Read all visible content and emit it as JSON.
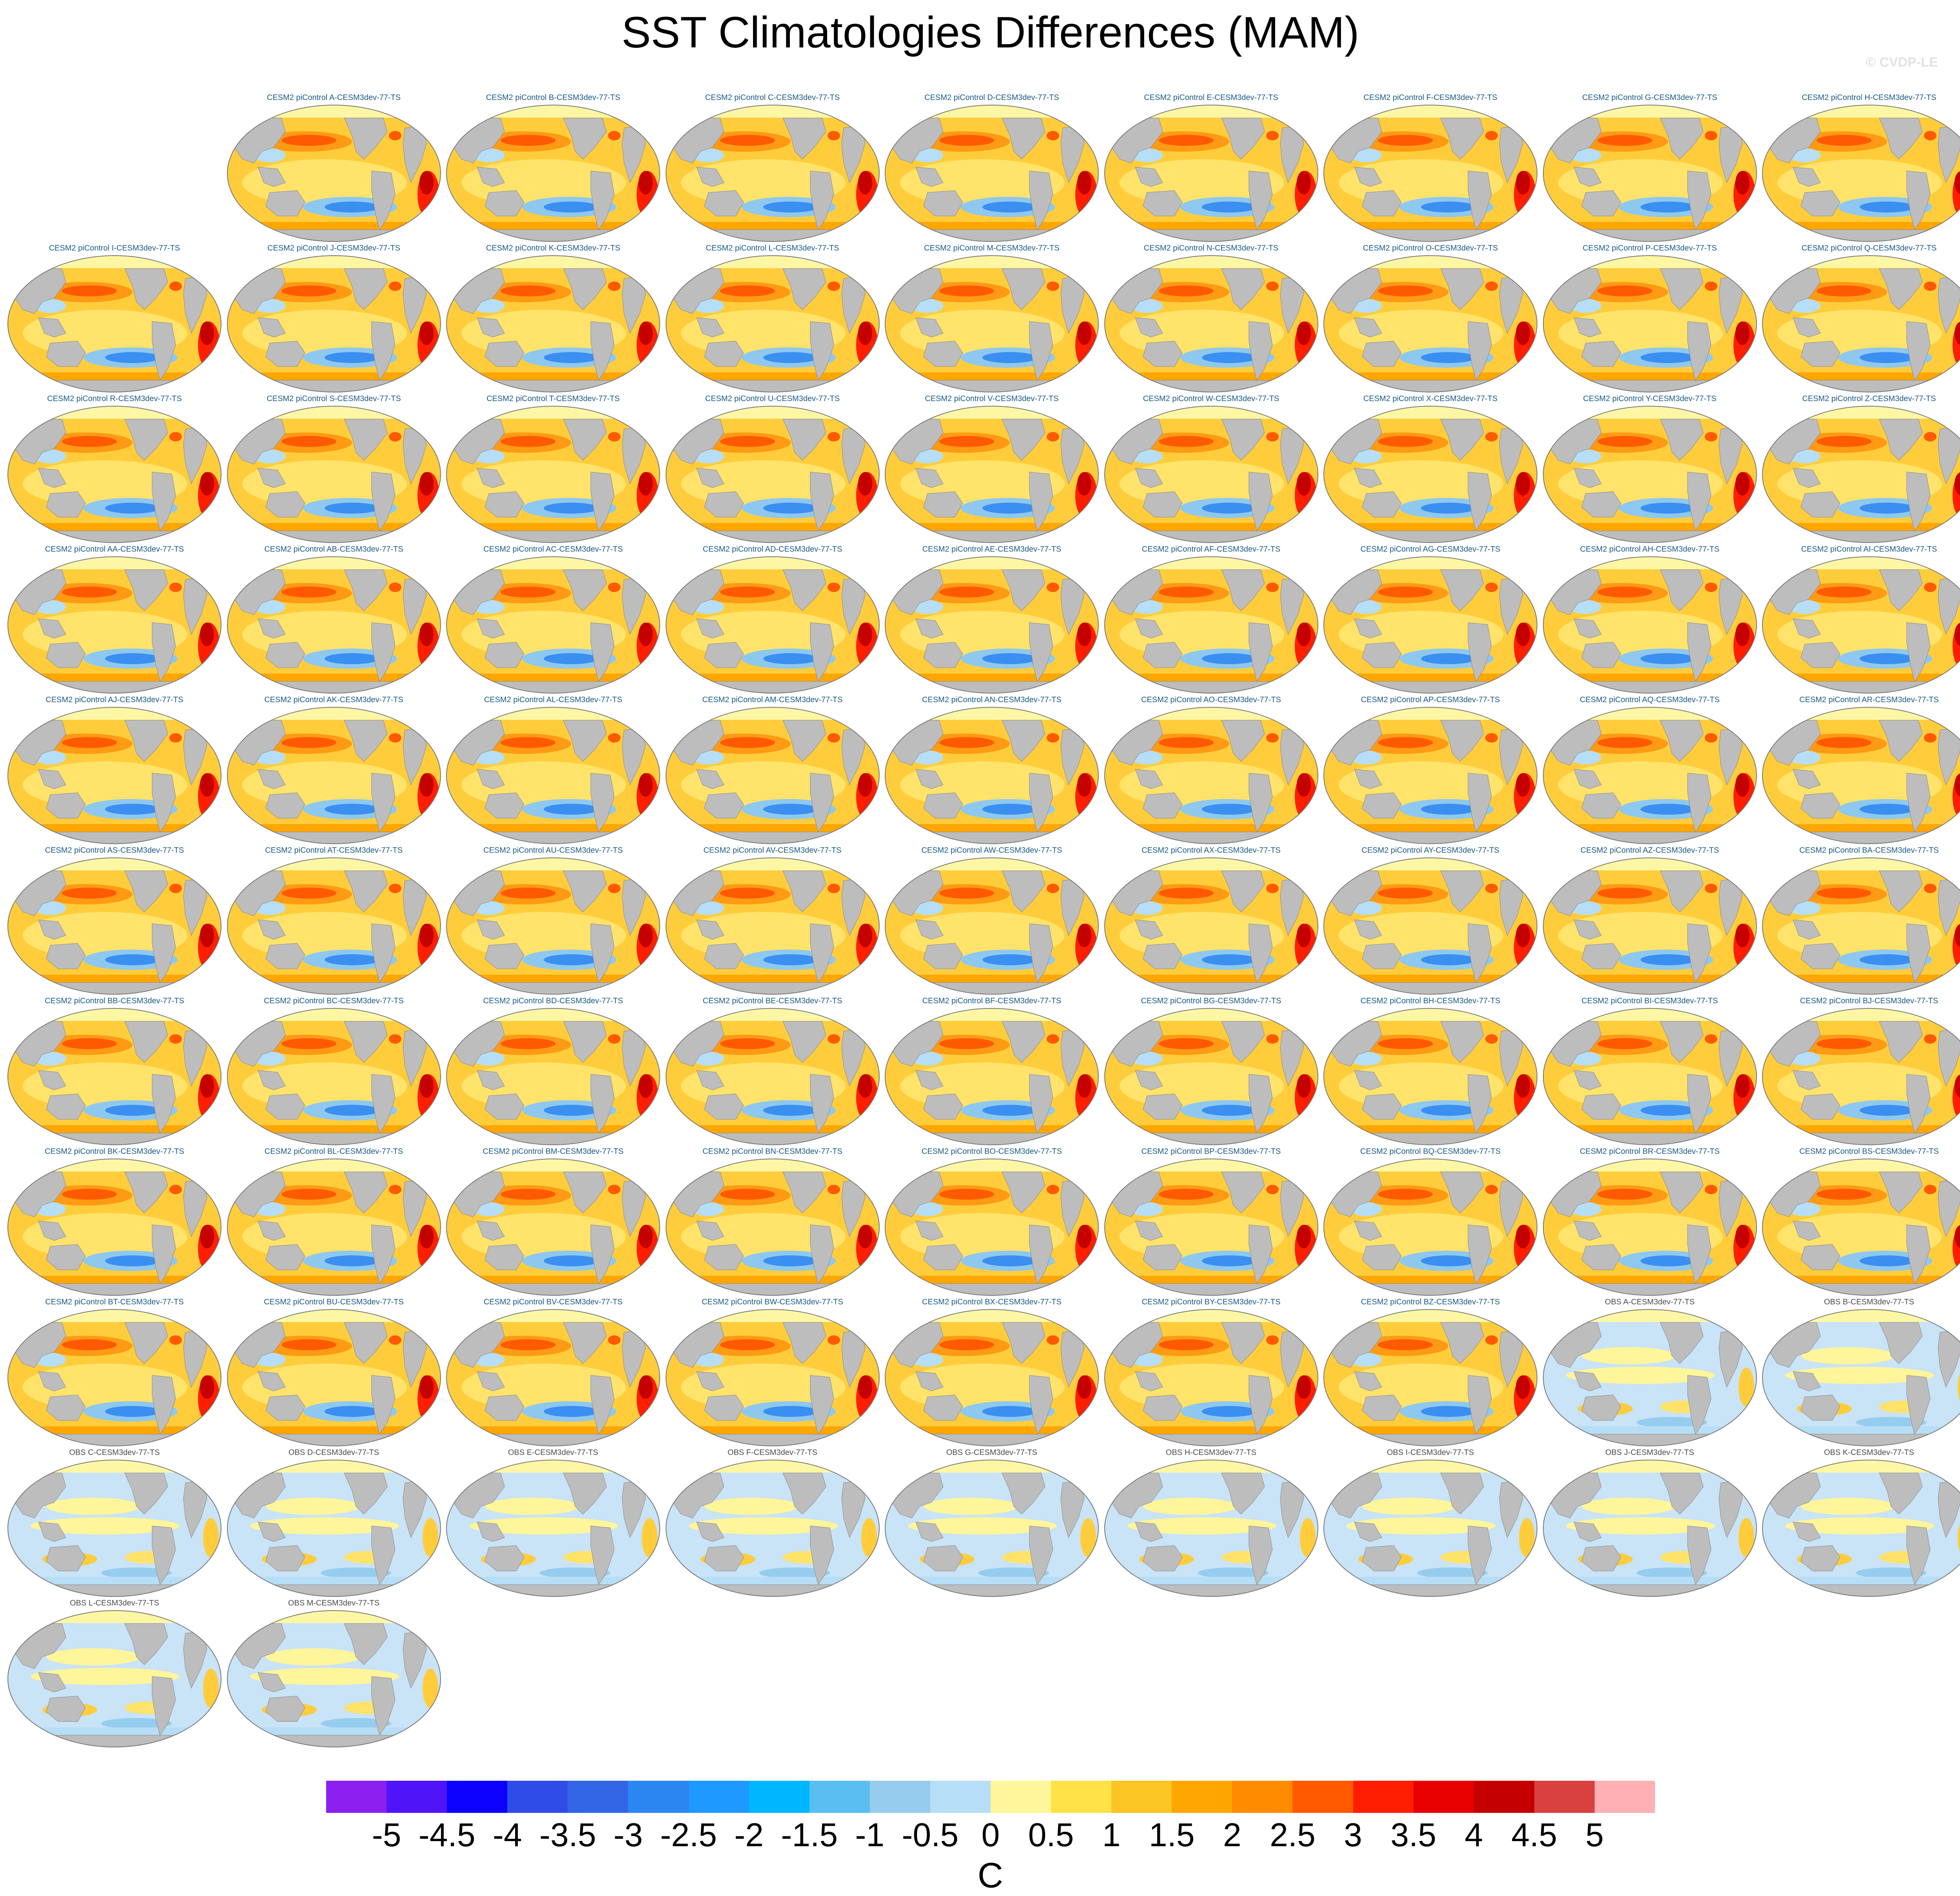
{
  "page": {
    "title": "SST Climatologies Differences (MAM)",
    "credit": "© CVDP-LE"
  },
  "chart_data": {
    "type": "heatmap",
    "title": "SST Climatologies Differences (MAM)",
    "projection": "global ocean maps (elliptical, Pacific-centered)",
    "land_color": "#bdbdbd",
    "sea_ice_color": "#fdf7a5",
    "panels": [
      {
        "label": "CESM2 piControl A-CESM3dev-77-TS",
        "kind": "model"
      },
      {
        "label": "CESM2 piControl B-CESM3dev-77-TS",
        "kind": "model"
      },
      {
        "label": "CESM2 piControl C-CESM3dev-77-TS",
        "kind": "model"
      },
      {
        "label": "CESM2 piControl D-CESM3dev-77-TS",
        "kind": "model"
      },
      {
        "label": "CESM2 piControl E-CESM3dev-77-TS",
        "kind": "model"
      },
      {
        "label": "CESM2 piControl F-CESM3dev-77-TS",
        "kind": "model"
      },
      {
        "label": "CESM2 piControl G-CESM3dev-77-TS",
        "kind": "model"
      },
      {
        "label": "CESM2 piControl H-CESM3dev-77-TS",
        "kind": "model"
      },
      {
        "label": "CESM2 piControl I-CESM3dev-77-TS",
        "kind": "model"
      },
      {
        "label": "CESM2 piControl J-CESM3dev-77-TS",
        "kind": "model"
      },
      {
        "label": "CESM2 piControl K-CESM3dev-77-TS",
        "kind": "model"
      },
      {
        "label": "CESM2 piControl L-CESM3dev-77-TS",
        "kind": "model"
      },
      {
        "label": "CESM2 piControl M-CESM3dev-77-TS",
        "kind": "model"
      },
      {
        "label": "CESM2 piControl N-CESM3dev-77-TS",
        "kind": "model"
      },
      {
        "label": "CESM2 piControl O-CESM3dev-77-TS",
        "kind": "model"
      },
      {
        "label": "CESM2 piControl P-CESM3dev-77-TS",
        "kind": "model"
      },
      {
        "label": "CESM2 piControl Q-CESM3dev-77-TS",
        "kind": "model"
      },
      {
        "label": "CESM2 piControl R-CESM3dev-77-TS",
        "kind": "model"
      },
      {
        "label": "CESM2 piControl S-CESM3dev-77-TS",
        "kind": "model"
      },
      {
        "label": "CESM2 piControl T-CESM3dev-77-TS",
        "kind": "model"
      },
      {
        "label": "CESM2 piControl U-CESM3dev-77-TS",
        "kind": "model"
      },
      {
        "label": "CESM2 piControl V-CESM3dev-77-TS",
        "kind": "model"
      },
      {
        "label": "CESM2 piControl W-CESM3dev-77-TS",
        "kind": "model"
      },
      {
        "label": "CESM2 piControl X-CESM3dev-77-TS",
        "kind": "model"
      },
      {
        "label": "CESM2 piControl Y-CESM3dev-77-TS",
        "kind": "model"
      },
      {
        "label": "CESM2 piControl Z-CESM3dev-77-TS",
        "kind": "model"
      },
      {
        "label": "CESM2 piControl AA-CESM3dev-77-TS",
        "kind": "model"
      },
      {
        "label": "CESM2 piControl AB-CESM3dev-77-TS",
        "kind": "model"
      },
      {
        "label": "CESM2 piControl AC-CESM3dev-77-TS",
        "kind": "model"
      },
      {
        "label": "CESM2 piControl AD-CESM3dev-77-TS",
        "kind": "model"
      },
      {
        "label": "CESM2 piControl AE-CESM3dev-77-TS",
        "kind": "model"
      },
      {
        "label": "CESM2 piControl AF-CESM3dev-77-TS",
        "kind": "model"
      },
      {
        "label": "CESM2 piControl AG-CESM3dev-77-TS",
        "kind": "model"
      },
      {
        "label": "CESM2 piControl AH-CESM3dev-77-TS",
        "kind": "model"
      },
      {
        "label": "CESM2 piControl AI-CESM3dev-77-TS",
        "kind": "model"
      },
      {
        "label": "CESM2 piControl AJ-CESM3dev-77-TS",
        "kind": "model"
      },
      {
        "label": "CESM2 piControl AK-CESM3dev-77-TS",
        "kind": "model"
      },
      {
        "label": "CESM2 piControl AL-CESM3dev-77-TS",
        "kind": "model"
      },
      {
        "label": "CESM2 piControl AM-CESM3dev-77-TS",
        "kind": "model"
      },
      {
        "label": "CESM2 piControl AN-CESM3dev-77-TS",
        "kind": "model"
      },
      {
        "label": "CESM2 piControl AO-CESM3dev-77-TS",
        "kind": "model"
      },
      {
        "label": "CESM2 piControl AP-CESM3dev-77-TS",
        "kind": "model"
      },
      {
        "label": "CESM2 piControl AQ-CESM3dev-77-TS",
        "kind": "model"
      },
      {
        "label": "CESM2 piControl AR-CESM3dev-77-TS",
        "kind": "model"
      },
      {
        "label": "CESM2 piControl AS-CESM3dev-77-TS",
        "kind": "model"
      },
      {
        "label": "CESM2 piControl AT-CESM3dev-77-TS",
        "kind": "model"
      },
      {
        "label": "CESM2 piControl AU-CESM3dev-77-TS",
        "kind": "model"
      },
      {
        "label": "CESM2 piControl AV-CESM3dev-77-TS",
        "kind": "model"
      },
      {
        "label": "CESM2 piControl AW-CESM3dev-77-TS",
        "kind": "model"
      },
      {
        "label": "CESM2 piControl AX-CESM3dev-77-TS",
        "kind": "model"
      },
      {
        "label": "CESM2 piControl AY-CESM3dev-77-TS",
        "kind": "model"
      },
      {
        "label": "CESM2 piControl AZ-CESM3dev-77-TS",
        "kind": "model"
      },
      {
        "label": "CESM2 piControl BA-CESM3dev-77-TS",
        "kind": "model"
      },
      {
        "label": "CESM2 piControl BB-CESM3dev-77-TS",
        "kind": "model"
      },
      {
        "label": "CESM2 piControl BC-CESM3dev-77-TS",
        "kind": "model"
      },
      {
        "label": "CESM2 piControl BD-CESM3dev-77-TS",
        "kind": "model"
      },
      {
        "label": "CESM2 piControl BE-CESM3dev-77-TS",
        "kind": "model"
      },
      {
        "label": "CESM2 piControl BF-CESM3dev-77-TS",
        "kind": "model"
      },
      {
        "label": "CESM2 piControl BG-CESM3dev-77-TS",
        "kind": "model"
      },
      {
        "label": "CESM2 piControl BH-CESM3dev-77-TS",
        "kind": "model"
      },
      {
        "label": "CESM2 piControl BI-CESM3dev-77-TS",
        "kind": "model"
      },
      {
        "label": "CESM2 piControl BJ-CESM3dev-77-TS",
        "kind": "model"
      },
      {
        "label": "CESM2 piControl BK-CESM3dev-77-TS",
        "kind": "model"
      },
      {
        "label": "CESM2 piControl BL-CESM3dev-77-TS",
        "kind": "model"
      },
      {
        "label": "CESM2 piControl BM-CESM3dev-77-TS",
        "kind": "model"
      },
      {
        "label": "CESM2 piControl BN-CESM3dev-77-TS",
        "kind": "model"
      },
      {
        "label": "CESM2 piControl BO-CESM3dev-77-TS",
        "kind": "model"
      },
      {
        "label": "CESM2 piControl BP-CESM3dev-77-TS",
        "kind": "model"
      },
      {
        "label": "CESM2 piControl BQ-CESM3dev-77-TS",
        "kind": "model"
      },
      {
        "label": "CESM2 piControl BR-CESM3dev-77-TS",
        "kind": "model"
      },
      {
        "label": "CESM2 piControl BS-CESM3dev-77-TS",
        "kind": "model"
      },
      {
        "label": "CESM2 piControl BT-CESM3dev-77-TS",
        "kind": "model"
      },
      {
        "label": "CESM2 piControl BU-CESM3dev-77-TS",
        "kind": "model"
      },
      {
        "label": "CESM2 piControl BV-CESM3dev-77-TS",
        "kind": "model"
      },
      {
        "label": "CESM2 piControl BW-CESM3dev-77-TS",
        "kind": "model"
      },
      {
        "label": "CESM2 piControl BX-CESM3dev-77-TS",
        "kind": "model"
      },
      {
        "label": "CESM2 piControl BY-CESM3dev-77-TS",
        "kind": "model"
      },
      {
        "label": "CESM2 piControl BZ-CESM3dev-77-TS",
        "kind": "model"
      },
      {
        "label": "OBS A-CESM3dev-77-TS",
        "kind": "obs"
      },
      {
        "label": "OBS B-CESM3dev-77-TS",
        "kind": "obs"
      },
      {
        "label": "OBS C-CESM3dev-77-TS",
        "kind": "obs"
      },
      {
        "label": "OBS D-CESM3dev-77-TS",
        "kind": "obs"
      },
      {
        "label": "OBS E-CESM3dev-77-TS",
        "kind": "obs"
      },
      {
        "label": "OBS F-CESM3dev-77-TS",
        "kind": "obs"
      },
      {
        "label": "OBS G-CESM3dev-77-TS",
        "kind": "obs"
      },
      {
        "label": "OBS H-CESM3dev-77-TS",
        "kind": "obs"
      },
      {
        "label": "OBS I-CESM3dev-77-TS",
        "kind": "obs"
      },
      {
        "label": "OBS J-CESM3dev-77-TS",
        "kind": "obs"
      },
      {
        "label": "OBS K-CESM3dev-77-TS",
        "kind": "obs"
      },
      {
        "label": "OBS L-CESM3dev-77-TS",
        "kind": "obs"
      },
      {
        "label": "OBS M-CESM3dev-77-TS",
        "kind": "obs"
      }
    ],
    "colorbar": {
      "ticks": [
        "-5",
        "-4.5",
        "-4",
        "-3.5",
        "-3",
        "-2.5",
        "-2",
        "-1.5",
        "-1",
        "-0.5",
        "0",
        "0.5",
        "1",
        "1.5",
        "2",
        "2.5",
        "3",
        "3.5",
        "4",
        "4.5",
        "5"
      ],
      "colors": [
        "#8a1ff0",
        "#5014f8",
        "#0c00ff",
        "#2f4de6",
        "#3366e6",
        "#2c86f2",
        "#1e99ff",
        "#00b7ff",
        "#5abff0",
        "#96cdef",
        "#b6def6",
        "#fff59a",
        "#ffe246",
        "#fbc524",
        "#ffa600",
        "#ff8c00",
        "#ff5a00",
        "#ff1e00",
        "#e80000",
        "#c40000",
        "#d94040",
        "#ffb0b4"
      ],
      "unit": "C"
    }
  }
}
